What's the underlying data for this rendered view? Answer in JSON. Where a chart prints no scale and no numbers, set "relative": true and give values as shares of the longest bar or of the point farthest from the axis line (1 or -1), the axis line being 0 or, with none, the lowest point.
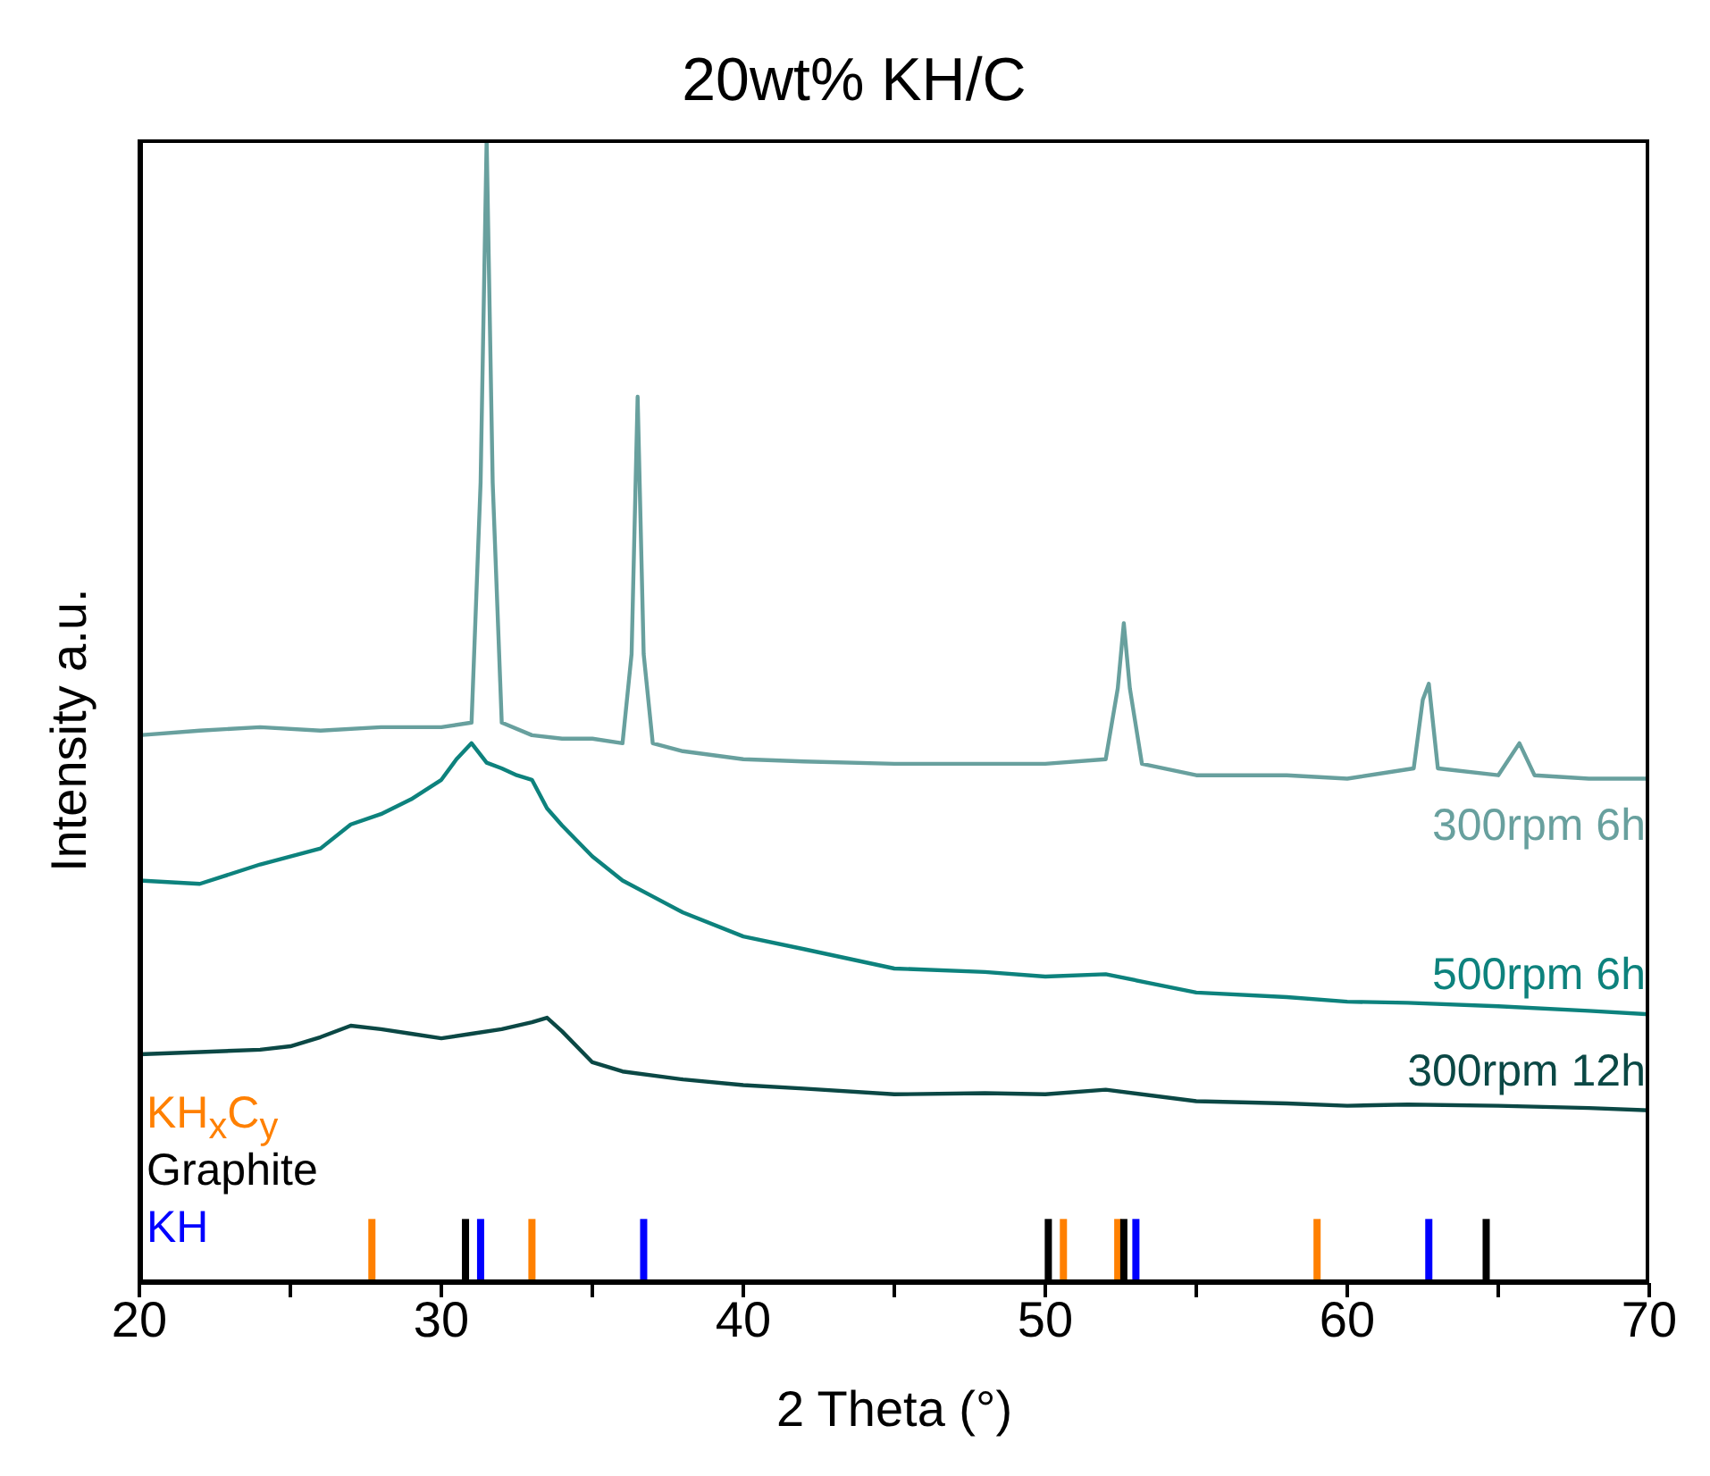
{
  "chart_data": {
    "type": "line",
    "title": "20wt% KH/C",
    "xlabel": "2 Theta (°)",
    "ylabel": "Intensity a.u.",
    "relative": true,
    "xlim": [
      20,
      70
    ],
    "xticks": [
      20,
      {
        "value": 25,
        "label": null
      },
      30,
      {
        "value": 35,
        "label": null
      },
      40,
      {
        "value": 45,
        "label": null
      },
      50,
      {
        "value": 55,
        "label": null
      },
      60,
      {
        "value": 65,
        "label": null
      },
      70
    ],
    "series": [
      {
        "name": "300rpm 6h",
        "color": "#68a09e",
        "x": [
          20,
          22,
          24,
          26,
          28,
          30,
          31,
          31.3,
          31.5,
          31.7,
          32,
          33,
          34,
          35,
          36,
          36.3,
          36.5,
          36.7,
          37,
          38,
          40,
          42,
          45,
          48,
          50,
          52,
          52.4,
          52.6,
          52.8,
          53.2,
          55,
          58,
          60,
          62.2,
          62.5,
          62.7,
          63,
          65,
          65.7,
          66.2,
          68,
          70
        ],
        "values": [
          0.479,
          0.483,
          0.486,
          0.483,
          0.486,
          0.486,
          0.49,
          0.7,
          1,
          0.7,
          0.49,
          0.479,
          0.476,
          0.476,
          0.472,
          0.55,
          0.775,
          0.55,
          0.472,
          0.465,
          0.458,
          0.456,
          0.454,
          0.454,
          0.454,
          0.458,
          0.52,
          0.577,
          0.52,
          0.454,
          0.444,
          0.444,
          0.441,
          0.45,
          0.51,
          0.524,
          0.45,
          0.444,
          0.472,
          0.444,
          0.441,
          0.441
        ]
      },
      {
        "name": "500rpm 6h",
        "color": "#0d827d",
        "x": [
          20,
          22,
          24,
          26,
          27,
          28,
          29,
          30,
          30.5,
          31,
          31.5,
          32,
          32.5,
          33,
          33.5,
          34,
          35,
          36,
          37,
          38,
          40,
          42,
          45,
          48,
          50,
          52,
          55,
          58,
          60,
          62,
          65,
          68,
          70
        ],
        "values": [
          0.352,
          0.349,
          0.366,
          0.38,
          0.401,
          0.41,
          0.423,
          0.44,
          0.458,
          0.472,
          0.455,
          0.45,
          0.444,
          0.44,
          0.415,
          0.4,
          0.373,
          0.352,
          0.338,
          0.324,
          0.303,
          0.292,
          0.275,
          0.272,
          0.268,
          0.27,
          0.254,
          0.25,
          0.246,
          0.245,
          0.242,
          0.238,
          0.235
        ]
      },
      {
        "name": "300rpm 12h",
        "color": "#0b4845",
        "x": [
          20,
          22,
          24,
          25,
          26,
          27,
          28,
          29,
          30,
          31,
          32,
          33,
          33.5,
          34,
          35,
          36,
          38,
          40,
          42,
          45,
          48,
          50,
          52,
          55,
          58,
          60,
          62,
          65,
          68,
          70
        ],
        "values": [
          0.2,
          0.202,
          0.204,
          0.207,
          0.215,
          0.225,
          0.222,
          0.218,
          0.214,
          0.218,
          0.222,
          0.228,
          0.232,
          0.22,
          0.193,
          0.185,
          0.178,
          0.173,
          0.17,
          0.165,
          0.166,
          0.165,
          0.169,
          0.159,
          0.157,
          0.155,
          0.156,
          0.155,
          0.153,
          0.151
        ]
      },
      {
        "name": "KH$_{x}$C$_{y}$",
        "type": "bar",
        "color": "#ff8000",
        "x": [
          27.7,
          33.0,
          50.6,
          52.4,
          59.0
        ],
        "values": [
          0.056,
          0.056,
          0.056,
          0.056,
          0.056
        ]
      },
      {
        "name": "Graphite",
        "type": "bar",
        "color": "#000000",
        "x": [
          30.8,
          50.1,
          52.6,
          64.6
        ],
        "values": [
          0.056,
          0.056,
          0.056,
          0.056
        ]
      },
      {
        "name": "KH",
        "type": "bar",
        "color": "#0000ff",
        "x": [
          31.3,
          36.7,
          53.0,
          62.7
        ],
        "values": [
          0.056,
          0.056,
          0.056,
          0.056
        ]
      }
    ]
  }
}
